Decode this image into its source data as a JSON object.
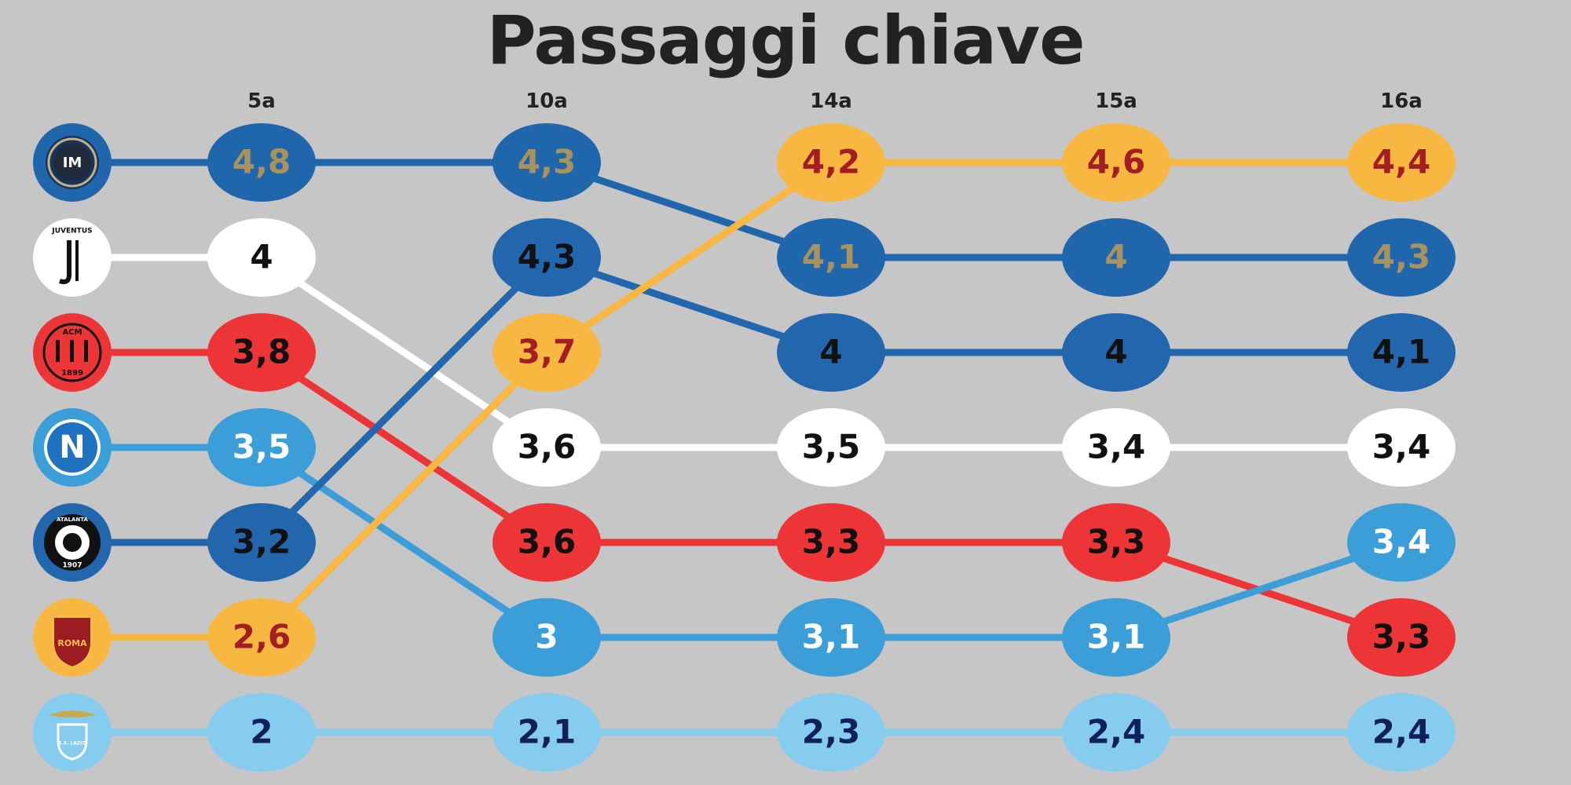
{
  "title": "Passaggi chiave",
  "chart_data": {
    "type": "bump",
    "title": "Passaggi chiave",
    "xlabel": "",
    "ylabel": "",
    "columns": [
      "5a",
      "10a",
      "14a",
      "15a",
      "16a"
    ],
    "series": [
      {
        "team": "Inter",
        "logo": "inter-logo",
        "color": "#2066ad",
        "text_color": "#a8925e",
        "values": [
          4.8,
          4.3,
          4.1,
          4,
          4.3
        ],
        "ranks": [
          1,
          1,
          2,
          2,
          2
        ],
        "labels": [
          "4,8",
          "4,3",
          "4,1",
          "4",
          "4,3"
        ]
      },
      {
        "team": "Juventus",
        "logo": "juventus-logo",
        "logo_text": "JUVENTUS",
        "color": "#ffffff",
        "text_color": "#111111",
        "values": [
          4,
          3.6,
          3.5,
          3.4,
          3.4
        ],
        "ranks": [
          2,
          4,
          4,
          4,
          4
        ],
        "labels": [
          "4",
          "3,6",
          "3,5",
          "3,4",
          "3,4"
        ]
      },
      {
        "team": "Milan",
        "logo": "milan-logo",
        "logo_text": "ACM 1899",
        "color": "#ed3436",
        "text_color": "#111111",
        "values": [
          3.8,
          3.6,
          3.3,
          3.3,
          3.3
        ],
        "ranks": [
          3,
          5,
          5,
          5,
          6
        ],
        "labels": [
          "3,8",
          "3,6",
          "3,3",
          "3,3",
          "3,3"
        ]
      },
      {
        "team": "Napoli",
        "logo": "napoli-logo",
        "logo_text": "N",
        "color": "#3c9ed8",
        "text_color": "#ffffff",
        "values": [
          3.5,
          3,
          3.1,
          3.1,
          3.4
        ],
        "ranks": [
          4,
          6,
          6,
          6,
          5
        ],
        "labels": [
          "3,5",
          "3",
          "3,1",
          "3,1",
          "3,4"
        ]
      },
      {
        "team": "Atalanta",
        "logo": "atalanta-logo",
        "logo_text": "ATALANTA 1907",
        "color": "#2266ad",
        "text_color": "#111111",
        "values": [
          3.2,
          4.3,
          4,
          4,
          4.1
        ],
        "ranks": [
          5,
          2,
          3,
          3,
          3
        ],
        "labels": [
          "3,2",
          "4,3",
          "4",
          "4",
          "4,1"
        ]
      },
      {
        "team": "Roma",
        "logo": "roma-logo",
        "logo_text": "ROMA",
        "color": "#f7b740",
        "text_color": "#a31d22",
        "values": [
          2.6,
          3.7,
          4.2,
          4.6,
          4.4
        ],
        "ranks": [
          6,
          3,
          1,
          1,
          1
        ],
        "labels": [
          "2,6",
          "3,7",
          "4,2",
          "4,6",
          "4,4"
        ]
      },
      {
        "team": "Lazio",
        "logo": "lazio-logo",
        "logo_text": "S.S. LAZIO",
        "color": "#86ccee",
        "text_color": "#10205a",
        "values": [
          2,
          2.1,
          2.3,
          2.4,
          2.4
        ],
        "ranks": [
          7,
          7,
          7,
          7,
          7
        ],
        "labels": [
          "2",
          "2,1",
          "2,3",
          "2,4",
          "2,4"
        ]
      }
    ]
  }
}
